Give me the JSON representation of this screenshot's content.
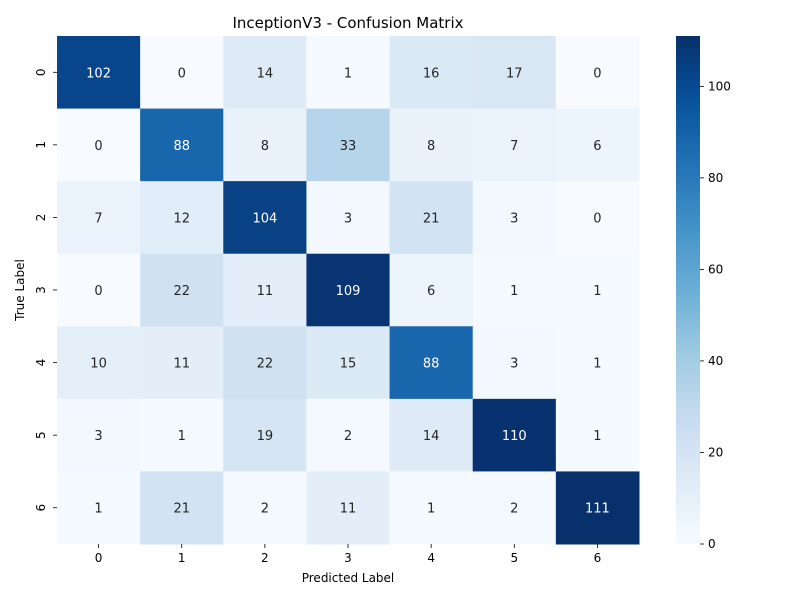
{
  "chart_data": {
    "type": "heatmap",
    "title": "InceptionV3 - Confusion Matrix",
    "xlabel": "Predicted Label",
    "ylabel": "True Label",
    "x_categories": [
      "0",
      "1",
      "2",
      "3",
      "4",
      "5",
      "6"
    ],
    "y_categories": [
      "0",
      "1",
      "2",
      "3",
      "4",
      "5",
      "6"
    ],
    "values": [
      [
        102,
        0,
        14,
        1,
        16,
        17,
        0
      ],
      [
        0,
        88,
        8,
        33,
        8,
        7,
        6
      ],
      [
        7,
        12,
        104,
        3,
        21,
        3,
        0
      ],
      [
        0,
        22,
        11,
        109,
        6,
        1,
        1
      ],
      [
        10,
        11,
        22,
        15,
        88,
        3,
        1
      ],
      [
        3,
        1,
        19,
        2,
        14,
        110,
        1
      ],
      [
        1,
        21,
        2,
        11,
        1,
        2,
        111
      ]
    ],
    "colorbar": {
      "min": 0,
      "max": 111,
      "ticks": [
        "0",
        "20",
        "40",
        "60",
        "80",
        "100"
      ],
      "colormap": "Blues"
    }
  }
}
